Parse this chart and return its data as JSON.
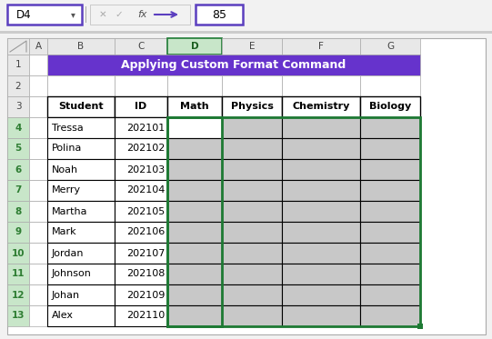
{
  "title": "Applying Custom Format Command",
  "title_bg": "#6633CC",
  "title_fg": "#FFFFFF",
  "formula_bar_cell": "D4",
  "formula_bar_value": "85",
  "col_letters": [
    "A",
    "B",
    "C",
    "D",
    "E",
    "F",
    "G"
  ],
  "row_numbers": [
    "1",
    "2",
    "3",
    "4",
    "5",
    "6",
    "7",
    "8",
    "9",
    "10",
    "11",
    "12",
    "13"
  ],
  "headers": [
    "Student",
    "ID",
    "Math",
    "Physics",
    "Chemistry",
    "Biology"
  ],
  "students": [
    "Tressa",
    "Polina",
    "Noah",
    "Merry",
    "Martha",
    "Mark",
    "Jordan",
    "Johnson",
    "Johan",
    "Alex"
  ],
  "ids": [
    "202101",
    "202102",
    "202103",
    "202104",
    "202105",
    "202106",
    "202107",
    "202108",
    "202109",
    "202110"
  ],
  "data_bg_gray": "#C8C8C8",
  "data_bg_white": "#FFFFFF",
  "header_row_bg": "#FFFFFF",
  "selected_col_header_bg": "#C8E6C9",
  "selected_row_header_bg": "#C8E6C9",
  "normal_row_header_bg": "#E8E8E8",
  "normal_col_header_bg": "#E8E8E8",
  "selected_border_color": "#1E7A34",
  "formula_border": "#5B3FBF",
  "outer_bg": "#F2F2F2",
  "sheet_bg": "#FFFFFF",
  "grid_color": "#BBBBBB",
  "thick_border": "#000000",
  "row_num_selected_color": "#2E7D32",
  "row_num_normal_color": "#2E7D32",
  "col_letter_selected_color": "#1B5E20",
  "col_letter_normal_color": "#444444"
}
